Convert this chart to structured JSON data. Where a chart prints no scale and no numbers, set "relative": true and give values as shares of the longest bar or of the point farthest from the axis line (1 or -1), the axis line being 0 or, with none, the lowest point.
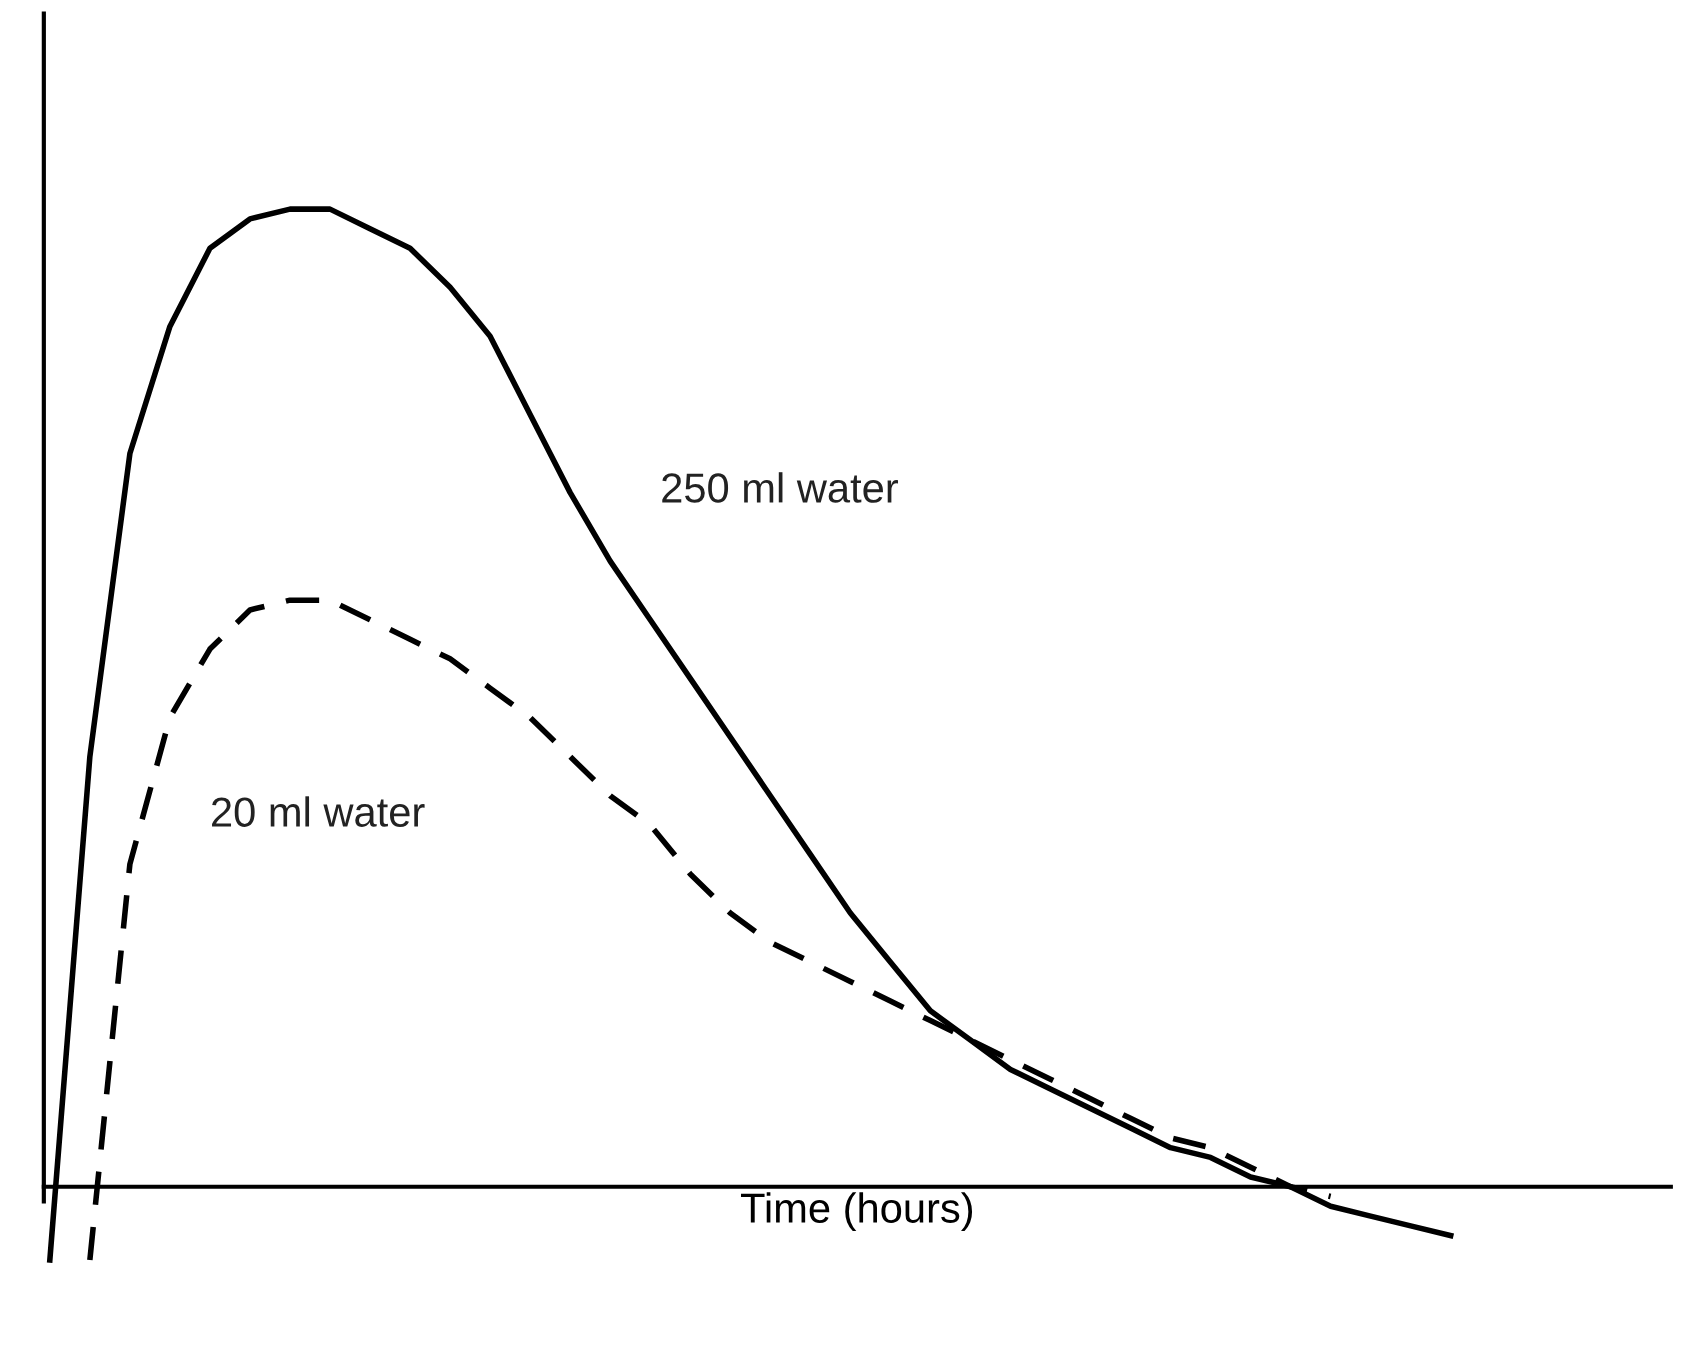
{
  "chart_data": {
    "type": "line",
    "relative": true,
    "xlabel": "Time (hours)",
    "legend": false,
    "categories": [
      null,
      null,
      null,
      null,
      null,
      null,
      null,
      null,
      null,
      null,
      null,
      null,
      null,
      null,
      null,
      null,
      null,
      null,
      null,
      null,
      null,
      null,
      null,
      null,
      null,
      null,
      null,
      null,
      null,
      null,
      null,
      null,
      null,
      null,
      null,
      null
    ],
    "series": [
      {
        "name": "250 ml water",
        "color": "#000000",
        "line_style": "solid",
        "values": [
          -0.075,
          0.44,
          0.75,
          0.88,
          0.96,
          0.99,
          1,
          1.0,
          0.98,
          0.96,
          0.92,
          0.87,
          0.79,
          0.71,
          0.64,
          0.58,
          0.52,
          0.46,
          0.4,
          0.34,
          0.28,
          0.23,
          0.18,
          0.15,
          0.12,
          0.1,
          0.08,
          0.06,
          0.04,
          0.03,
          0.01,
          0.0,
          -0.02,
          -0.03,
          -0.04,
          -0.05
        ]
      },
      {
        "name": "20 ml water",
        "color": "#000000",
        "line_style": "dashed",
        "values": [
          null,
          -0.075,
          0.33,
          0.48,
          0.55,
          0.59,
          0.6,
          0.6,
          0.58,
          0.56,
          0.54,
          0.51,
          0.48,
          0.44,
          0.4,
          0.37,
          0.32,
          0.28,
          0.25,
          0.23,
          0.21,
          0.19,
          0.17,
          0.15,
          0.13,
          0.11,
          0.09,
          0.07,
          0.05,
          0.04,
          0.02,
          0.0,
          -0.01,
          null,
          null,
          null
        ]
      }
    ]
  }
}
